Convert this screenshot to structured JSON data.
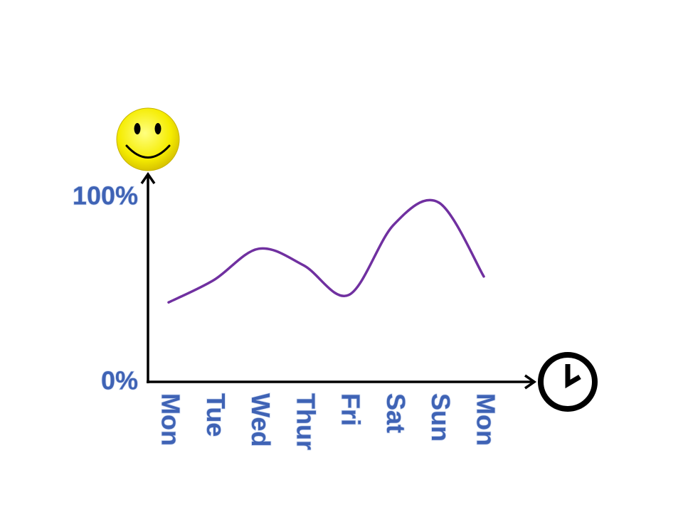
{
  "chart_data": {
    "type": "line",
    "categories": [
      "Mon",
      "Tue",
      "Wed",
      "Thur",
      "Fri",
      "Sat",
      "Sun",
      "Mon"
    ],
    "values": [
      43,
      55,
      72,
      63,
      47,
      85,
      97,
      57
    ],
    "color": "#7030a0",
    "ylim": [
      0,
      100
    ],
    "yticks": [
      {
        "value": 0,
        "label": "0%"
      },
      {
        "value": 100,
        "label": "100%"
      }
    ]
  }
}
